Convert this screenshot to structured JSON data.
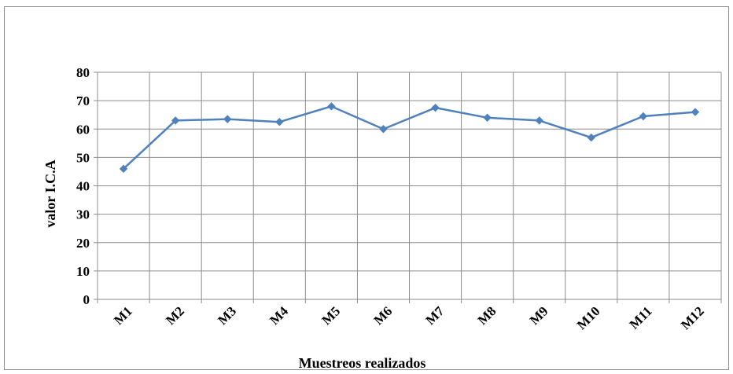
{
  "chart_data": {
    "type": "line",
    "title": "",
    "xlabel": "Muestreos realizados",
    "ylabel": "valor I.C.A",
    "categories": [
      "M1",
      "M2",
      "M3",
      "M4",
      "M5",
      "M6",
      "M7",
      "M8",
      "M9",
      "M10",
      "M11",
      "M12"
    ],
    "series": [
      {
        "values": [
          46,
          63,
          63.5,
          62.5,
          68,
          60,
          67.5,
          64,
          63,
          57,
          64.5,
          66
        ],
        "color": "#4f81bd"
      }
    ],
    "ylim": [
      0,
      80
    ],
    "yticks": [
      0,
      10,
      20,
      30,
      40,
      50,
      60,
      70,
      80
    ],
    "grid": true,
    "legend": "none",
    "marker": "diamond"
  }
}
